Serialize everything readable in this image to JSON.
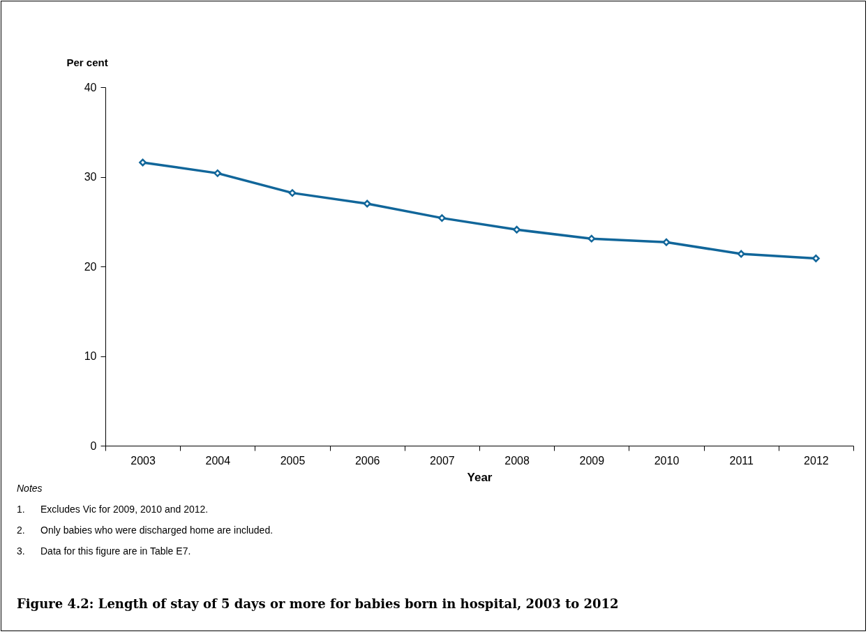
{
  "chart_data": {
    "type": "line",
    "title": "Figure 4.2: Length of stay of 5 days or more for babies born in hospital, 2003 to 2012",
    "xlabel": "Year",
    "ylabel": "Per cent",
    "categories": [
      "2003",
      "2004",
      "2005",
      "2006",
      "2007",
      "2008",
      "2009",
      "2010",
      "2011",
      "2012"
    ],
    "series": [
      {
        "color": "#11669a",
        "values": [
          31.6,
          30.4,
          28.2,
          27.0,
          25.4,
          24.1,
          23.1,
          22.7,
          21.4,
          20.9
        ]
      }
    ],
    "ylim": [
      0,
      40
    ],
    "yticks": [
      0,
      10,
      20,
      30,
      40
    ],
    "grid": false,
    "legend": false,
    "marker": "diamond",
    "line_style": "solid",
    "annotations": [
      "Notes",
      "1.\tExcludes Vic for 2009, 2010 and 2012.",
      "2.\tOnly babies who were discharged home are included.",
      "3.\tData for this figure are in Table E7."
    ]
  }
}
